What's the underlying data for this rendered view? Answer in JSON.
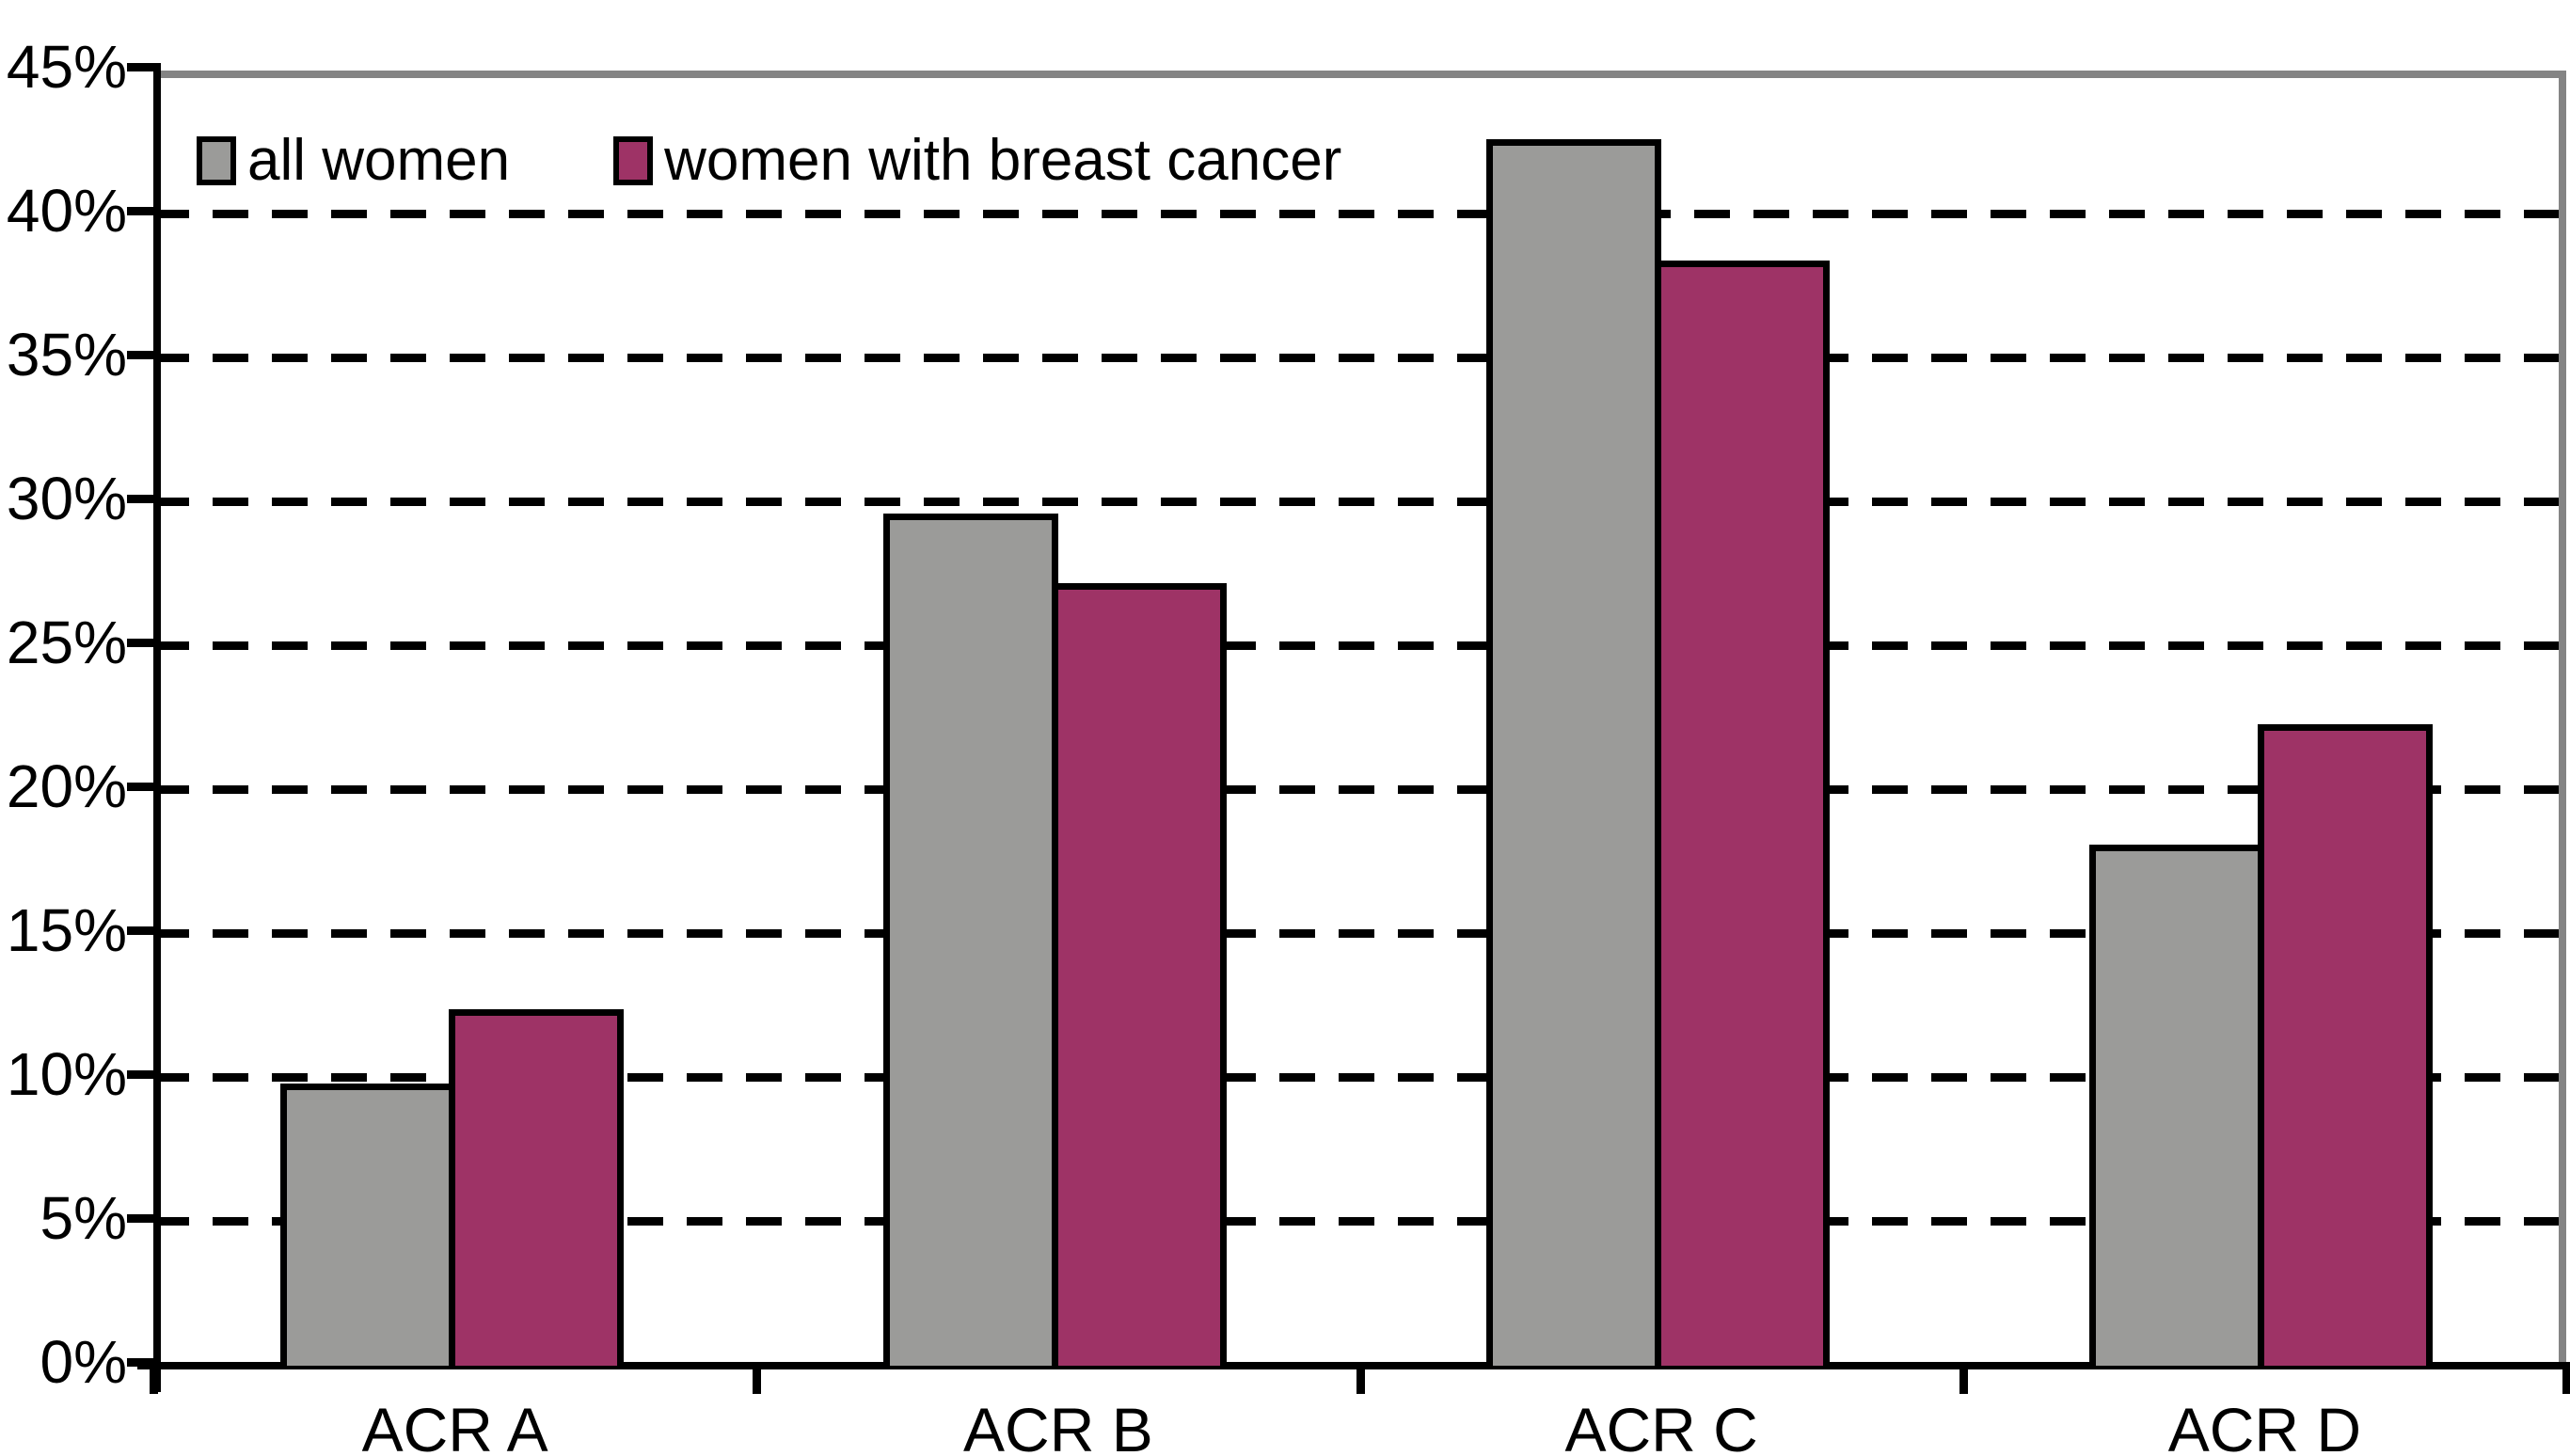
{
  "chart_data": {
    "type": "bar",
    "title": "",
    "xlabel": "",
    "ylabel": "",
    "categories": [
      "ACR A",
      "ACR B",
      "ACR C",
      "ACR D"
    ],
    "series": [
      {
        "name": "all women",
        "color": "#9b9b99",
        "values": [
          9.8,
          29.6,
          42.6,
          18.1
        ]
      },
      {
        "name": "women with breast cancer",
        "color": "#9e3366",
        "values": [
          12.4,
          27.2,
          38.4,
          22.3
        ]
      }
    ],
    "y_ticks": [
      0,
      5,
      10,
      15,
      20,
      25,
      30,
      35,
      40,
      45
    ],
    "y_tick_labels": [
      "0%",
      "5%",
      "10%",
      "15%",
      "20%",
      "25%",
      "30%",
      "35%",
      "40%",
      "45%"
    ],
    "ylim": [
      0,
      45
    ],
    "grid": "horizontal-dashed",
    "legend_position": "top-left-inside",
    "colors": {
      "bar_border": "#000000",
      "axis": "#000000",
      "plot_border": "#848484",
      "gridline": "#000000",
      "background": "#ffffff",
      "text": "#000000"
    }
  }
}
